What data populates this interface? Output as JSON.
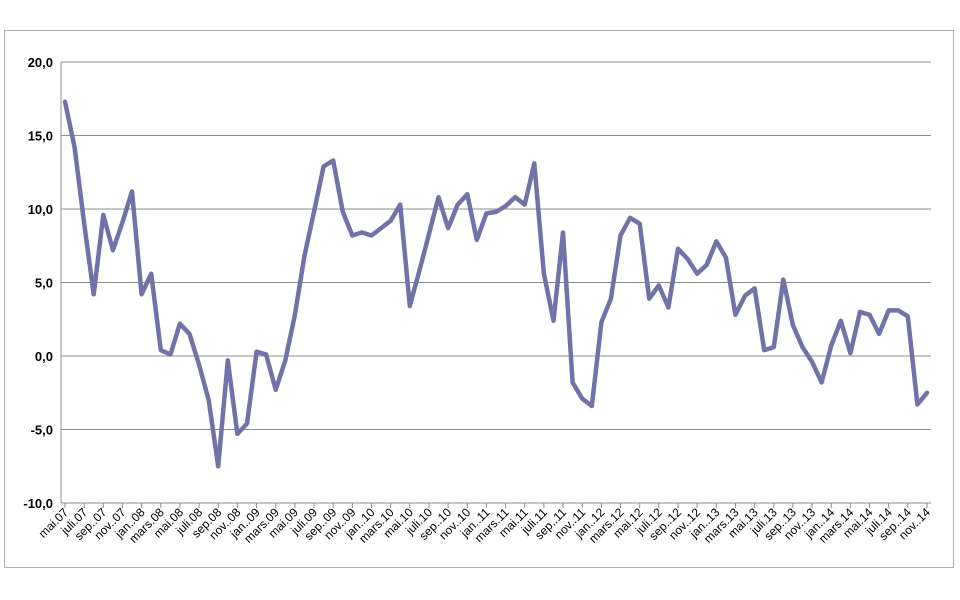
{
  "chart_data": {
    "type": "line",
    "title": "",
    "xlabel": "",
    "ylabel": "",
    "ylim": [
      -10,
      20
    ],
    "yticks": [
      20,
      15,
      10,
      5,
      0,
      -5,
      -10
    ],
    "ytick_labels": [
      "20,0",
      "15,0",
      "10,0",
      "5,0",
      "0,0",
      "-5,0",
      "-10,0"
    ],
    "grid": true,
    "legend": "none",
    "line_color": "#7272a8",
    "x_tick_labels": [
      "mai.07",
      "juli.07",
      "sep..07",
      "nov..07",
      "jan..08",
      "mars.08",
      "mai.08",
      "juli.08",
      "sep.08",
      "nov..08",
      "jan..09",
      "mars.09",
      "mai.09",
      "juli.09",
      "sep..09",
      "nov..09",
      "jan..10",
      "mars.10",
      "mai.10",
      "juli.10",
      "sep..10",
      "nov..10",
      "jan..11",
      "mars.11",
      "mai.11",
      "juli.11",
      "sep..11",
      "nov..11",
      "jan..12",
      "mars.12",
      "mai.12",
      "juli.12",
      "sep..12",
      "nov..12",
      "jan..13",
      "mars.13",
      "mai.13",
      "juli.13",
      "sep..13",
      "nov..13",
      "jan..14",
      "mars.14",
      "mai.14",
      "juli.14",
      "sep..14",
      "nov..14"
    ],
    "values": [
      17.3,
      14.2,
      9.0,
      4.2,
      9.6,
      7.2,
      9.1,
      11.2,
      4.2,
      5.6,
      0.4,
      0.1,
      2.2,
      1.5,
      -0.6,
      -3.0,
      -7.5,
      -0.3,
      -5.3,
      -4.6,
      0.3,
      0.1,
      -2.3,
      -0.3,
      2.8,
      6.8,
      9.8,
      12.9,
      13.3,
      9.8,
      8.2,
      8.4,
      8.2,
      8.7,
      9.2,
      10.3,
      3.4,
      5.8,
      8.3,
      10.8,
      8.7,
      10.3,
      11.0,
      7.9,
      9.7,
      9.8,
      10.2,
      10.8,
      10.3,
      13.1,
      5.6,
      2.4,
      8.4,
      -1.8,
      -2.9,
      -3.4,
      2.3,
      3.9,
      8.2,
      9.4,
      9.0,
      3.9,
      4.8,
      3.3,
      7.3,
      6.6,
      5.6,
      6.2,
      7.8,
      6.7,
      2.8,
      4.1,
      4.6,
      0.4,
      0.6,
      5.2,
      2.1,
      0.6,
      -0.4,
      -1.8,
      0.7,
      2.4,
      0.2,
      3.0,
      2.8,
      1.5,
      3.1,
      3.1,
      2.7,
      -3.3,
      -2.5
    ]
  }
}
